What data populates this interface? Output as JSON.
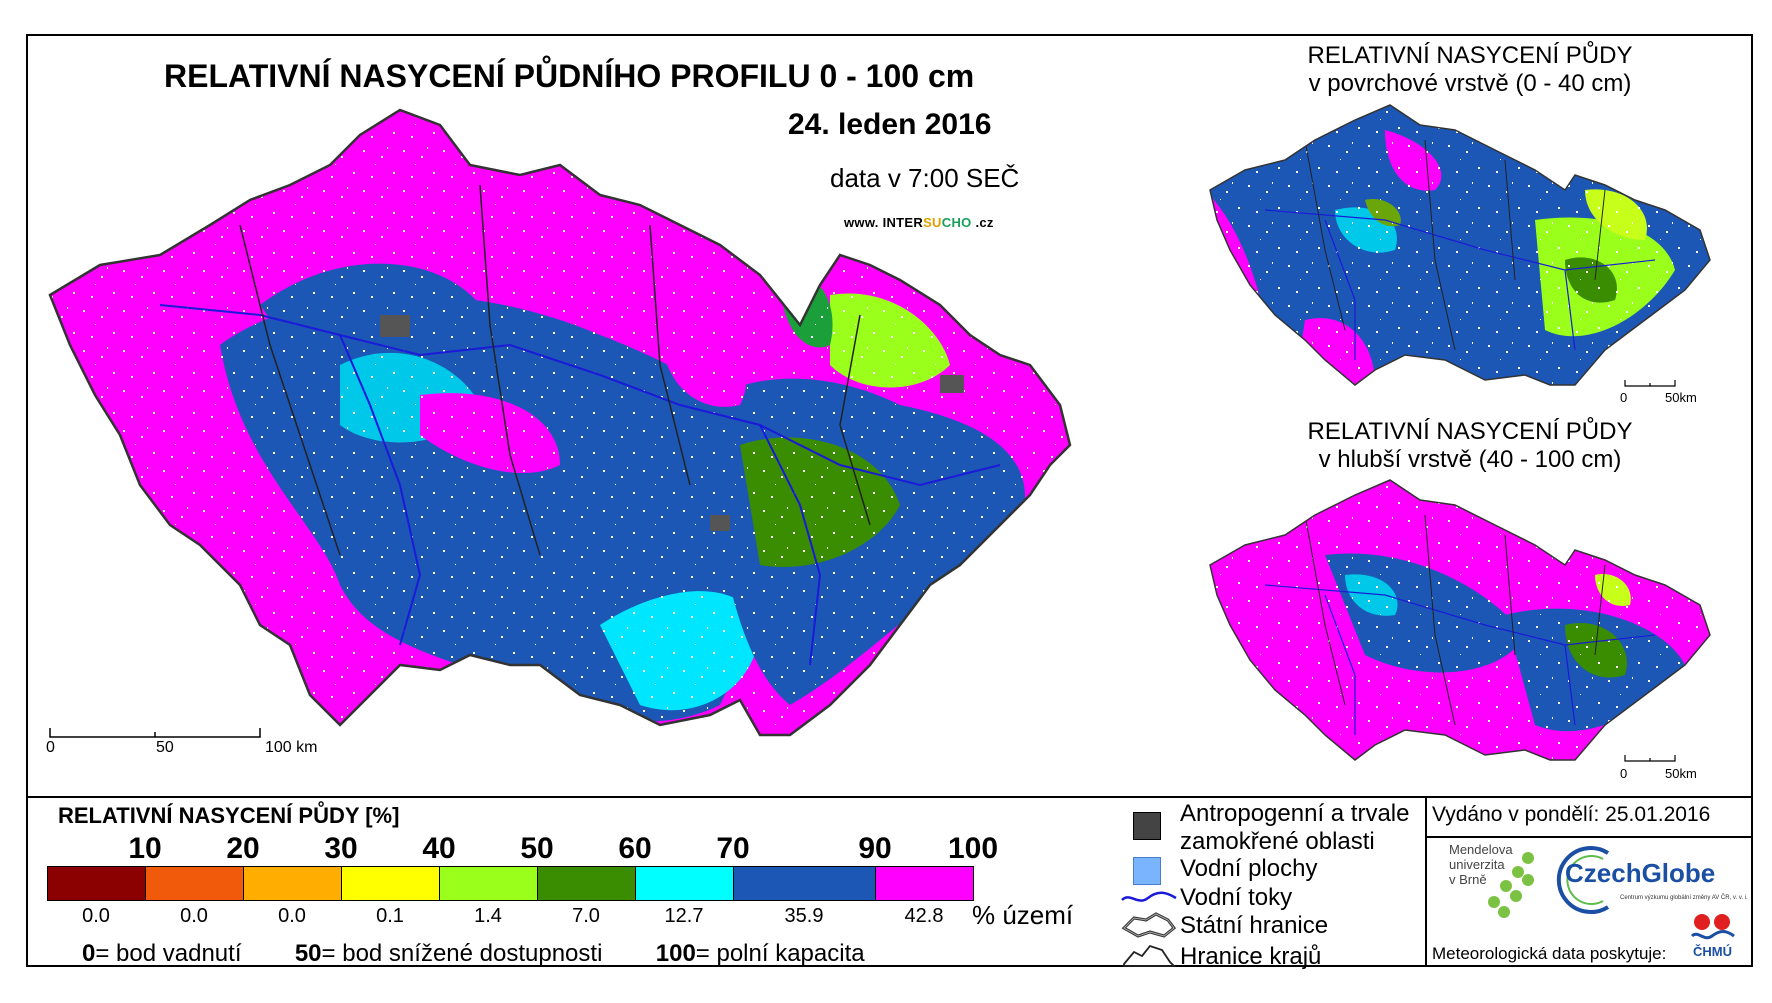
{
  "title": "RELATIVNÍ NASYCENÍ PŮDNÍHO PROFILU 0 - 100 cm",
  "date": "24. leden 2016",
  "data_time": "data v 7:00 SEČ",
  "website": {
    "pre": "www. INTER",
    "su": "SU",
    "cho": "CHO",
    "post": " .cz"
  },
  "main_scale": {
    "labels": [
      "0",
      "50",
      "100 km"
    ]
  },
  "surface_map": {
    "title_line1": "RELATIVNÍ NASYCENÍ PŮDY",
    "title_line2": "v povrchové vrstvě (0 - 40 cm)",
    "scale_labels": [
      "0",
      "50km"
    ]
  },
  "deep_map": {
    "title_line1": "RELATIVNÍ NASYCENÍ PŮDY",
    "title_line2": "v hlubší vrstvě (40 - 100 cm)",
    "scale_labels": [
      "0",
      "50km"
    ]
  },
  "legend": {
    "title": "RELATIVNÍ NASYCENÍ PŮDY [%]",
    "ticks": [
      "10",
      "20",
      "30",
      "40",
      "50",
      "60",
      "70",
      "90",
      "100"
    ],
    "classes": [
      {
        "color": "#8b0000",
        "percent": "0.0"
      },
      {
        "color": "#f05a0a",
        "percent": "0.0"
      },
      {
        "color": "#ffae00",
        "percent": "0.0"
      },
      {
        "color": "#ffff00",
        "percent": "0.1"
      },
      {
        "color": "#9aff1a",
        "percent": "1.4"
      },
      {
        "color": "#3a8c00",
        "percent": "7.0"
      },
      {
        "color": "#00ffff",
        "percent": "12.7"
      },
      {
        "color": "#1c57b6",
        "percent": "35.9"
      },
      {
        "color": "#ff00ff",
        "percent": "42.8"
      }
    ],
    "unit_label": "% území",
    "notes": [
      {
        "value": "0",
        "text": "= bod vadnutí"
      },
      {
        "value": "50",
        "text": "= bod snížené dostupnosti"
      },
      {
        "value": "100",
        "text": "= polní kapacita"
      }
    ]
  },
  "symbols": {
    "anthropogenic": "Antropogenní a trvale",
    "anthropogenic2": "zamokřené oblasti",
    "water_bodies": "Vodní plochy",
    "rivers": "Vodní toky",
    "state_border": "Státní hranice",
    "region_border": "Hranice krajů"
  },
  "issued": "Vydáno v pondělí: 25.01.2016",
  "logos": {
    "mendel": [
      "Mendelova",
      "univerzita",
      "v Brně"
    ],
    "czechglobe": "CzechGlobe",
    "czechglobe_sub": "Centrum výzkumu globální změny AV ČR, v. v. i.",
    "chmu": "ČHMÚ"
  },
  "meteo_credit": "Meteorologická data poskytuje:"
}
